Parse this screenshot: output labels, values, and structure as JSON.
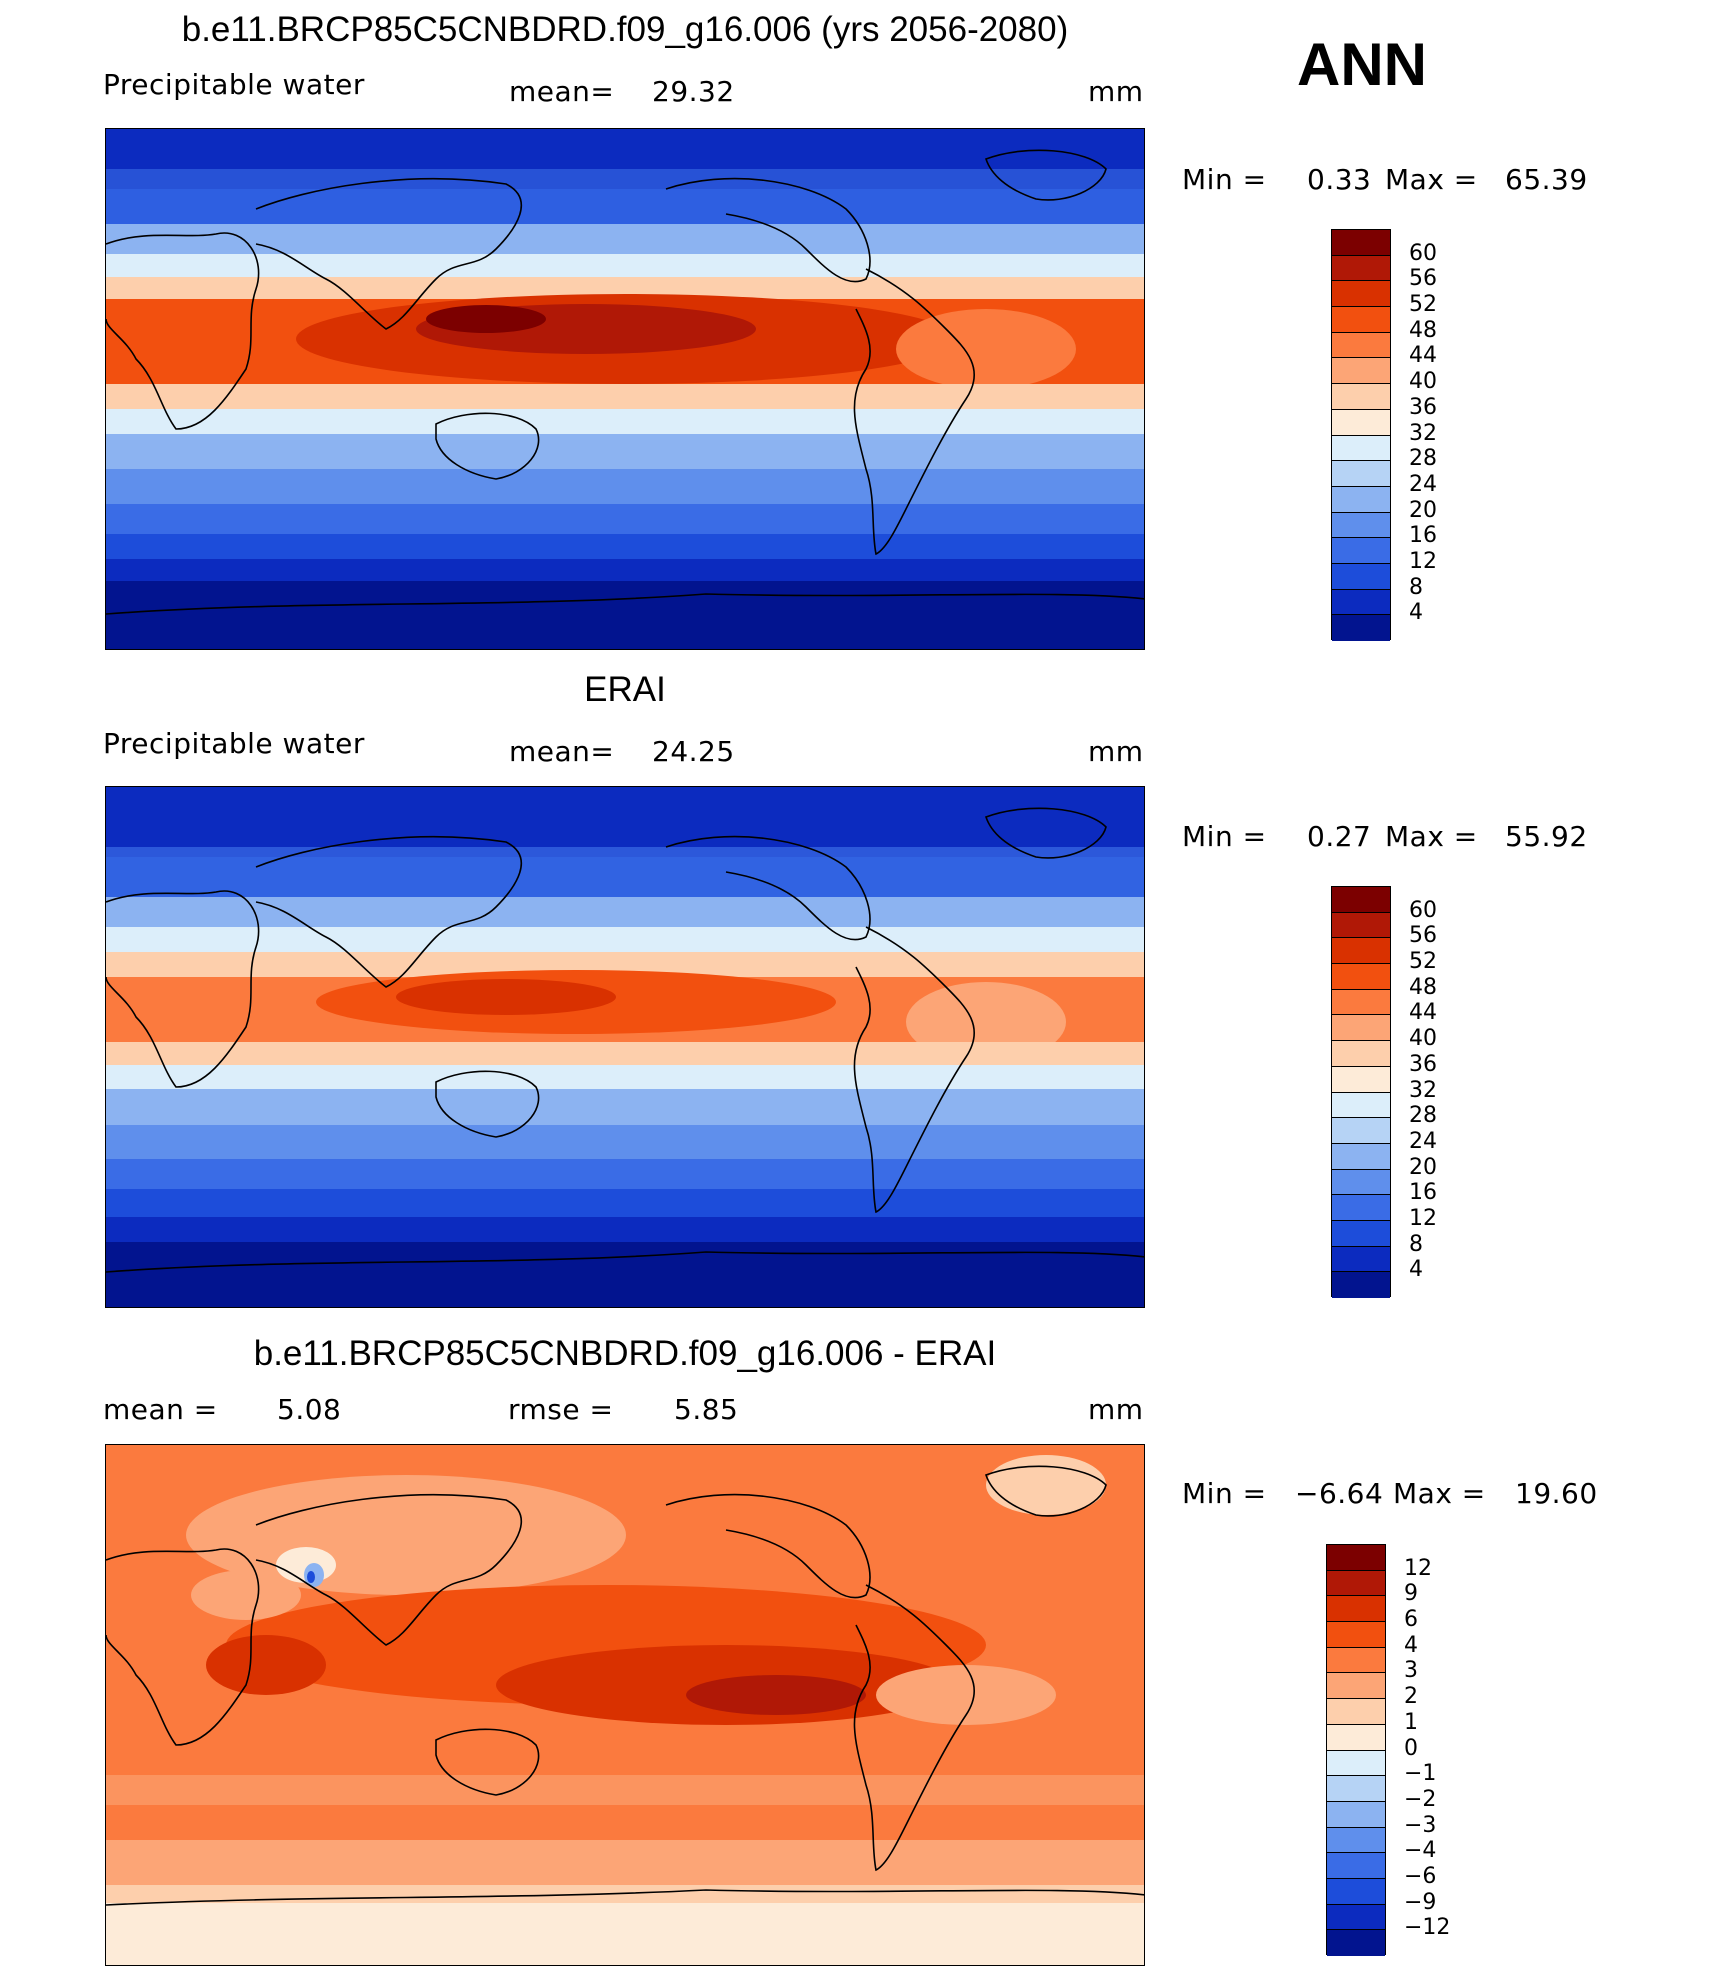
{
  "season": "ANN",
  "chart_data": [
    {
      "type": "heatmap",
      "title": "b.e11.BRCP85C5CNBDRD.f09_g16.006 (yrs 2056-2080)",
      "variable": "Precipitable water",
      "mean_label": "mean=",
      "mean": "29.32",
      "units": "mm",
      "min_label": "Min =",
      "min": "0.33",
      "max_label": "Max =",
      "max": "65.39",
      "levels": [
        "60",
        "56",
        "52",
        "48",
        "44",
        "40",
        "36",
        "32",
        "28",
        "24",
        "20",
        "16",
        "12",
        "8",
        "4"
      ],
      "colors": [
        "#7c0000",
        "#b01806",
        "#d93100",
        "#f2500f",
        "#fb7a3e",
        "#fca576",
        "#fdcfac",
        "#fdebd8",
        "#dceefa",
        "#b6d3f5",
        "#8cb3f1",
        "#5f8fec",
        "#3a6ce6",
        "#1d4dda",
        "#0c2bbf",
        "#02148f"
      ]
    },
    {
      "type": "heatmap",
      "title": "ERAI",
      "variable": "Precipitable water",
      "mean_label": "mean=",
      "mean": "24.25",
      "units": "mm",
      "min_label": "Min =",
      "min": "0.27",
      "max_label": "Max =",
      "max": "55.92",
      "levels": [
        "60",
        "56",
        "52",
        "48",
        "44",
        "40",
        "36",
        "32",
        "28",
        "24",
        "20",
        "16",
        "12",
        "8",
        "4"
      ],
      "colors": [
        "#7c0000",
        "#b01806",
        "#d93100",
        "#f2500f",
        "#fb7a3e",
        "#fca576",
        "#fdcfac",
        "#fdebd8",
        "#dceefa",
        "#b6d3f5",
        "#8cb3f1",
        "#5f8fec",
        "#3a6ce6",
        "#1d4dda",
        "#0c2bbf",
        "#02148f"
      ]
    },
    {
      "type": "heatmap",
      "title": "b.e11.BRCP85C5CNBDRD.f09_g16.006 - ERAI",
      "mean_label": "mean =",
      "mean": "5.08",
      "rmse_label": "rmse =",
      "rmse": "5.85",
      "units": "mm",
      "min_label": "Min =",
      "min": "−6.64",
      "max_label": "Max =",
      "max": "19.60",
      "levels": [
        "12",
        "9",
        "6",
        "4",
        "3",
        "2",
        "1",
        "0",
        "−1",
        "−2",
        "−3",
        "−4",
        "−6",
        "−9",
        "−12"
      ],
      "colors": [
        "#7c0000",
        "#b01806",
        "#d93100",
        "#f2500f",
        "#fb7a3e",
        "#fca576",
        "#fdcfac",
        "#fdebd8",
        "#dceefa",
        "#b6d3f5",
        "#8cb3f1",
        "#5f8fec",
        "#3a6ce6",
        "#1d4dda",
        "#0c2bbf",
        "#02148f"
      ]
    }
  ]
}
